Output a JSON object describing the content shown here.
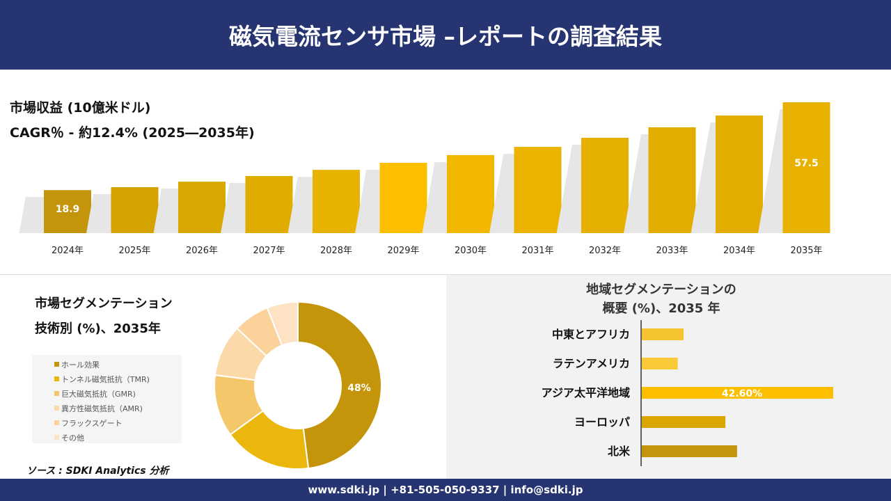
{
  "header": {
    "title": "磁気電流センサ市場 –レポートの調査結果"
  },
  "footer": {
    "text": "www.sdki.jp | +81-505-050-9337 | info@sdki.jp"
  },
  "source": "ソース : SDKI Analytics 分析",
  "chart_data": [
    {
      "type": "bar",
      "title": "市場収益 (10億米ドル)",
      "subtitle": "CAGR％ - 約12.4% (2025―2035年)",
      "categories": [
        "2024年",
        "2025年",
        "2026年",
        "2027年",
        "2028年",
        "2029年",
        "2030年",
        "2031年",
        "2032年",
        "2033年",
        "2034年",
        "2035年"
      ],
      "values": [
        18.9,
        20.2,
        22.6,
        25.1,
        27.8,
        30.9,
        34.3,
        37.9,
        41.9,
        46.5,
        51.7,
        57.5
      ],
      "labels": {
        "0": "18.9",
        "11": "57.5"
      },
      "colors": [
        "#c4940a",
        "#d4a300",
        "#d9a800",
        "#e0ac00",
        "#e8b300",
        "#fbbf00",
        "#f2b800",
        "#ebb300",
        "#e6b000",
        "#e3ad00",
        "#e2ac00",
        "#e8b100"
      ]
    },
    {
      "type": "pie",
      "title": "市場セグメンテーション",
      "subtitle": "技術別 (%)、2035年",
      "categories": [
        "ホール効果",
        "トンネル磁気抵抗（TMR)",
        "巨大磁気抵抗（GMR)",
        "異方性磁気抵抗（AMR)",
        "フラックスゲート",
        "その他"
      ],
      "values": [
        48,
        17,
        12,
        10,
        7,
        6
      ],
      "label": "48%",
      "colors": [
        "#c4940a",
        "#ebb70c",
        "#f4c86a",
        "#fbd9a8",
        "#fbd39a",
        "#fde3c4"
      ]
    },
    {
      "type": "bar",
      "orientation": "horizontal",
      "title": "地域セグメンテーションの",
      "subtitle": "概要 (%)、2035 年",
      "categories": [
        "中東とアフリカ",
        "ラテンアメリカ",
        "アジア太平洋地域",
        "ヨーロッパ",
        "北米"
      ],
      "values": [
        9.3,
        8.0,
        42.6,
        18.6,
        21.2
      ],
      "label": "42.60%",
      "colors": [
        "#f7c431",
        "#f9c937",
        "#fbbf00",
        "#dca600",
        "#c4940a"
      ]
    }
  ]
}
